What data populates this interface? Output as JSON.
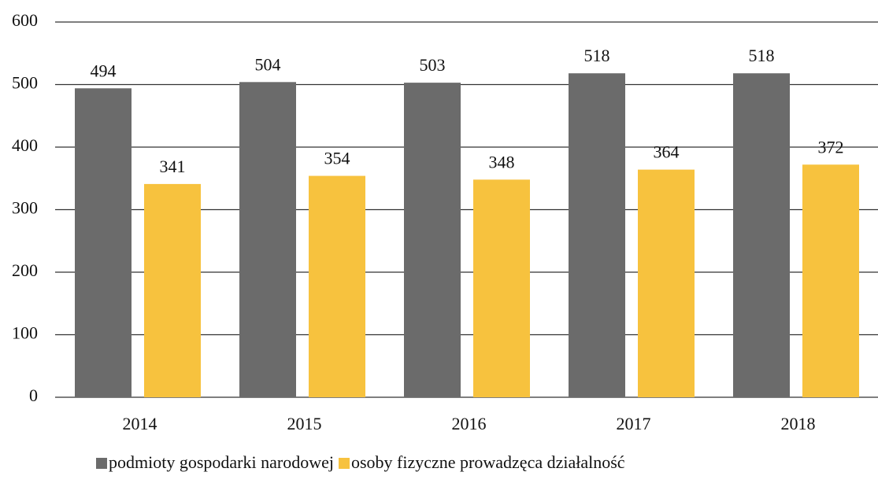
{
  "chart_data": {
    "type": "bar",
    "categories": [
      "2014",
      "2015",
      "2016",
      "2017",
      "2018"
    ],
    "series": [
      {
        "name": "podmioty gospodarki narodowej",
        "color": "#6b6b6b",
        "values": [
          494,
          504,
          503,
          518,
          518
        ]
      },
      {
        "name": "osoby fizyczne prowadzęca działalność",
        "color": "#f7c23e",
        "values": [
          341,
          354,
          348,
          364,
          372
        ]
      }
    ],
    "ylim": [
      0,
      600
    ],
    "yticks": [
      0,
      100,
      200,
      300,
      400,
      500,
      600
    ],
    "grid": true,
    "legend": "bottom"
  }
}
